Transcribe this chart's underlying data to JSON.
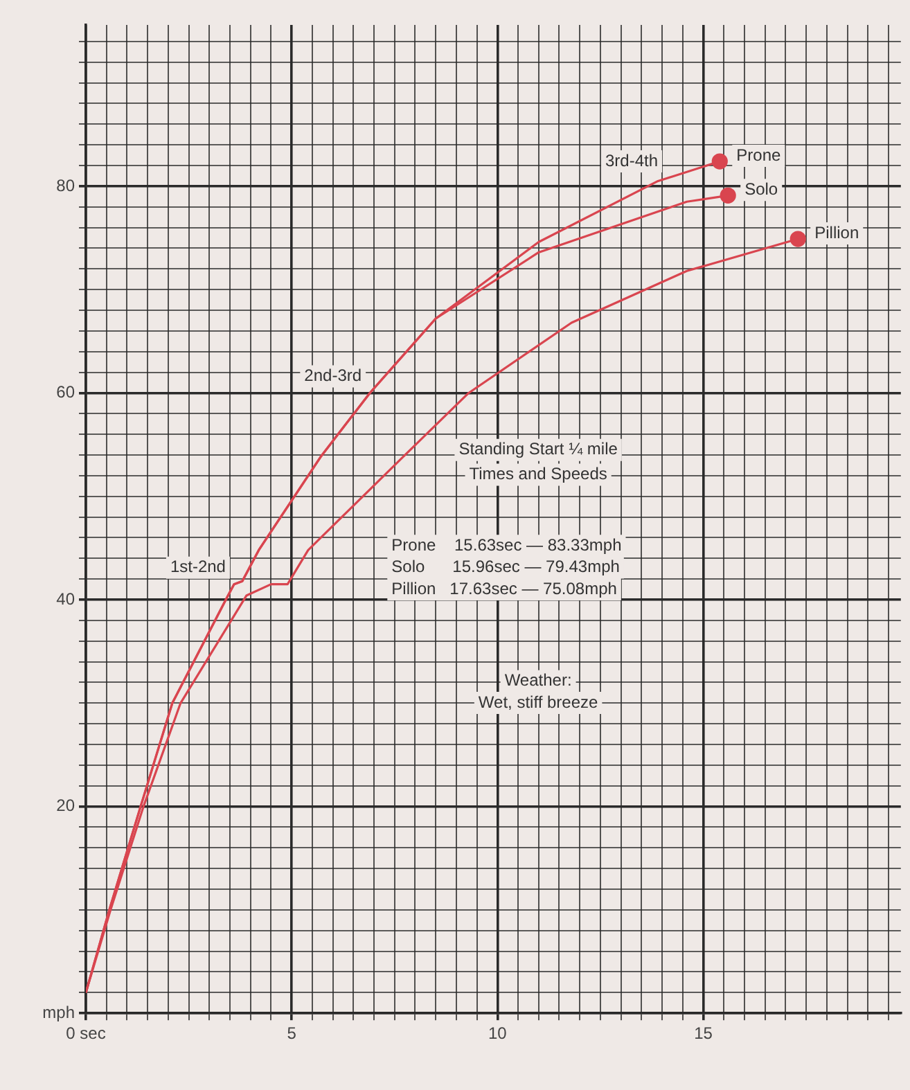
{
  "chart_data": {
    "type": "line",
    "xlim": [
      0,
      19.8
    ],
    "ylim": [
      0,
      95.6
    ],
    "xticks": [
      {
        "value": 0,
        "label": "0 sec"
      },
      {
        "value": 0.5,
        "label": null
      },
      {
        "value": 1,
        "label": null
      },
      {
        "value": 1.5,
        "label": null
      },
      {
        "value": 2,
        "label": null
      },
      {
        "value": 2.5,
        "label": null
      },
      {
        "value": 3,
        "label": null
      },
      {
        "value": 3.5,
        "label": null
      },
      {
        "value": 4,
        "label": null
      },
      {
        "value": 4.5,
        "label": null
      },
      5,
      {
        "value": 5.5,
        "label": null
      },
      {
        "value": 6,
        "label": null
      },
      {
        "value": 6.5,
        "label": null
      },
      {
        "value": 7,
        "label": null
      },
      {
        "value": 7.5,
        "label": null
      },
      {
        "value": 8,
        "label": null
      },
      {
        "value": 8.5,
        "label": null
      },
      {
        "value": 9,
        "label": null
      },
      {
        "value": 9.5,
        "label": null
      },
      10,
      {
        "value": 10.5,
        "label": null
      },
      {
        "value": 11,
        "label": null
      },
      {
        "value": 11.5,
        "label": null
      },
      {
        "value": 12,
        "label": null
      },
      {
        "value": 12.5,
        "label": null
      },
      {
        "value": 13,
        "label": null
      },
      {
        "value": 13.5,
        "label": null
      },
      {
        "value": 14,
        "label": null
      },
      {
        "value": 14.5,
        "label": null
      },
      15,
      {
        "value": 15.5,
        "label": null
      },
      {
        "value": 16,
        "label": null
      },
      {
        "value": 16.5,
        "label": null
      },
      {
        "value": 17,
        "label": null
      },
      {
        "value": 17.5,
        "label": null
      },
      {
        "value": 18,
        "label": null
      },
      {
        "value": 18.5,
        "label": null
      },
      {
        "value": 19,
        "label": null
      },
      {
        "value": 19.5,
        "label": null
      }
    ],
    "yticks": [
      {
        "value": 0,
        "label": "mph"
      },
      {
        "value": 2,
        "label": null
      },
      {
        "value": 4,
        "label": null
      },
      {
        "value": 6,
        "label": null
      },
      {
        "value": 8,
        "label": null
      },
      {
        "value": 10,
        "label": null
      },
      {
        "value": 12,
        "label": null
      },
      {
        "value": 14,
        "label": null
      },
      {
        "value": 16,
        "label": null
      },
      {
        "value": 18,
        "label": null
      },
      20,
      {
        "value": 22,
        "label": null
      },
      {
        "value": 24,
        "label": null
      },
      {
        "value": 26,
        "label": null
      },
      {
        "value": 28,
        "label": null
      },
      {
        "value": 30,
        "label": null
      },
      {
        "value": 32,
        "label": null
      },
      {
        "value": 34,
        "label": null
      },
      {
        "value": 36,
        "label": null
      },
      {
        "value": 38,
        "label": null
      },
      40,
      {
        "value": 42,
        "label": null
      },
      {
        "value": 44,
        "label": null
      },
      {
        "value": 46,
        "label": null
      },
      {
        "value": 48,
        "label": null
      },
      {
        "value": 50,
        "label": null
      },
      {
        "value": 52,
        "label": null
      },
      {
        "value": 54,
        "label": null
      },
      {
        "value": 56,
        "label": null
      },
      {
        "value": 58,
        "label": null
      },
      60,
      {
        "value": 62,
        "label": null
      },
      {
        "value": 64,
        "label": null
      },
      {
        "value": 66,
        "label": null
      },
      {
        "value": 68,
        "label": null
      },
      {
        "value": 70,
        "label": null
      },
      {
        "value": 72,
        "label": null
      },
      {
        "value": 74,
        "label": null
      },
      {
        "value": 76,
        "label": null
      },
      {
        "value": 78,
        "label": null
      },
      80,
      {
        "value": 82,
        "label": null
      },
      {
        "value": 84,
        "label": null
      },
      {
        "value": 86,
        "label": null
      },
      {
        "value": 88,
        "label": null
      },
      {
        "value": 90,
        "label": null
      },
      {
        "value": 92,
        "label": null
      },
      {
        "value": 94,
        "label": null
      }
    ],
    "grid": true,
    "legend": false,
    "marker": "none",
    "line_style": "solid",
    "series": [
      {
        "name": "Prone",
        "color": "#d9454f",
        "x": [
          0,
          0.57,
          1.33,
          2.1,
          3.4,
          3.6,
          3.8,
          4.2,
          5.7,
          6.9,
          8.5,
          11,
          13.9,
          14.3,
          15.4
        ],
        "values": [
          2,
          10,
          20,
          30,
          40,
          41.5,
          41.8,
          44.8,
          53.8,
          60,
          67.2,
          74.6,
          80.5,
          81,
          82.4
        ]
      },
      {
        "name": "Solo",
        "color": "#d9454f",
        "x": [
          0,
          0.57,
          1.33,
          2.1,
          3.4,
          3.6,
          3.8,
          4.2,
          5.7,
          6.9,
          8.5,
          11,
          14.6,
          15.6
        ],
        "values": [
          2,
          10,
          20,
          30,
          40,
          41.5,
          41.8,
          44.8,
          53.8,
          60,
          67.2,
          73.6,
          78.5,
          79.1
        ]
      },
      {
        "name": "Pillion",
        "color": "#d9454f",
        "x": [
          0,
          0.6,
          1.4,
          2.3,
          3.9,
          4.5,
          4.9,
          5.4,
          7.7,
          9.3,
          11.8,
          14.6,
          17.3
        ],
        "values": [
          2,
          10,
          20,
          30,
          40.4,
          41.5,
          41.5,
          44.8,
          53.8,
          60,
          66.8,
          71.8,
          74.9
        ]
      },
      {
        "type": "scatter",
        "marker": "circle",
        "color": "#d9454f",
        "x": [
          15.4,
          15.6,
          17.3
        ],
        "values": [
          82.4,
          79.1,
          74.9
        ]
      }
    ],
    "annotations": [
      {
        "text": "1st-2nd",
        "x": 3.6,
        "y": 41.5
      },
      {
        "text": "2nd-3rd",
        "x": 6.9,
        "y": 60
      },
      {
        "text": "3rd-4th",
        "x": 14.1,
        "y": 80.8
      },
      "Standing Start ¼ mile",
      "Times and Speeds",
      "Prone    15.63sec — 83.33mph",
      "Solo      15.96sec — 79.43mph",
      "Pillion   17.63sec — 75.08mph",
      "Weather:",
      "Wet, stiff breeze"
    ]
  }
}
